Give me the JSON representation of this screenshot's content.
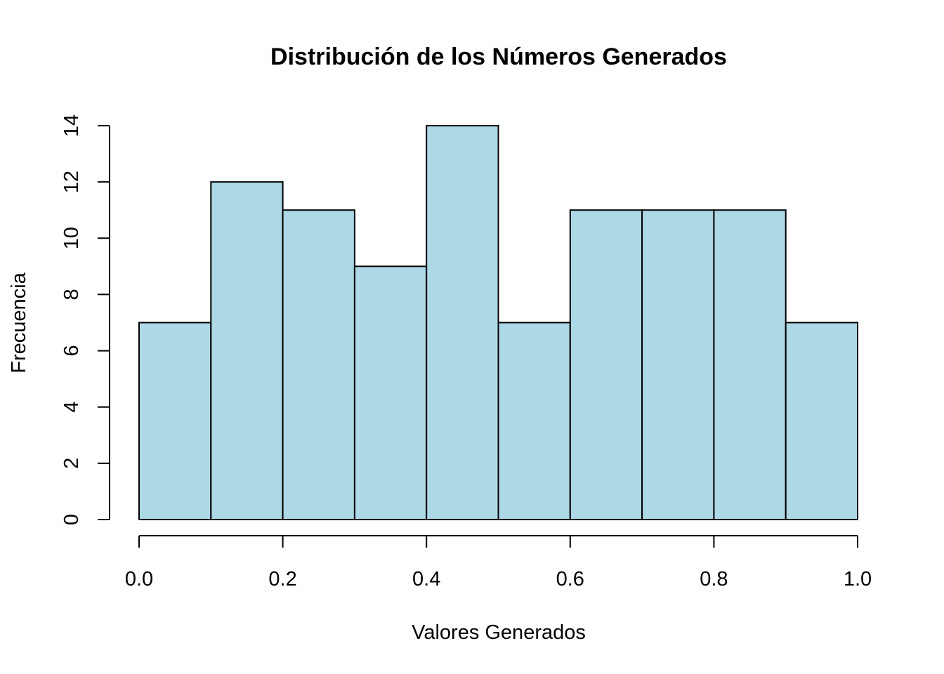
{
  "chart_data": {
    "type": "bar",
    "title": "Distribución de los Números Generados",
    "xlabel": "Valores Generados",
    "ylabel": "Frecuencia",
    "bins": [
      {
        "x0": 0.0,
        "x1": 0.1,
        "count": 7
      },
      {
        "x0": 0.1,
        "x1": 0.2,
        "count": 12
      },
      {
        "x0": 0.2,
        "x1": 0.3,
        "count": 11
      },
      {
        "x0": 0.3,
        "x1": 0.4,
        "count": 9
      },
      {
        "x0": 0.4,
        "x1": 0.5,
        "count": 14
      },
      {
        "x0": 0.5,
        "x1": 0.6,
        "count": 7
      },
      {
        "x0": 0.6,
        "x1": 0.7,
        "count": 11
      },
      {
        "x0": 0.7,
        "x1": 0.8,
        "count": 11
      },
      {
        "x0": 0.8,
        "x1": 0.9,
        "count": 11
      },
      {
        "x0": 0.9,
        "x1": 1.0,
        "count": 7
      }
    ],
    "xlim": [
      0.0,
      1.0
    ],
    "ylim": [
      0,
      14
    ],
    "x_ticks": [
      "0.0",
      "0.2",
      "0.4",
      "0.6",
      "0.8",
      "1.0"
    ],
    "y_ticks": [
      "0",
      "2",
      "4",
      "6",
      "8",
      "10",
      "12",
      "14"
    ],
    "grid": false,
    "bar_color": "#ADD8E6",
    "edge_color": "#000000"
  }
}
